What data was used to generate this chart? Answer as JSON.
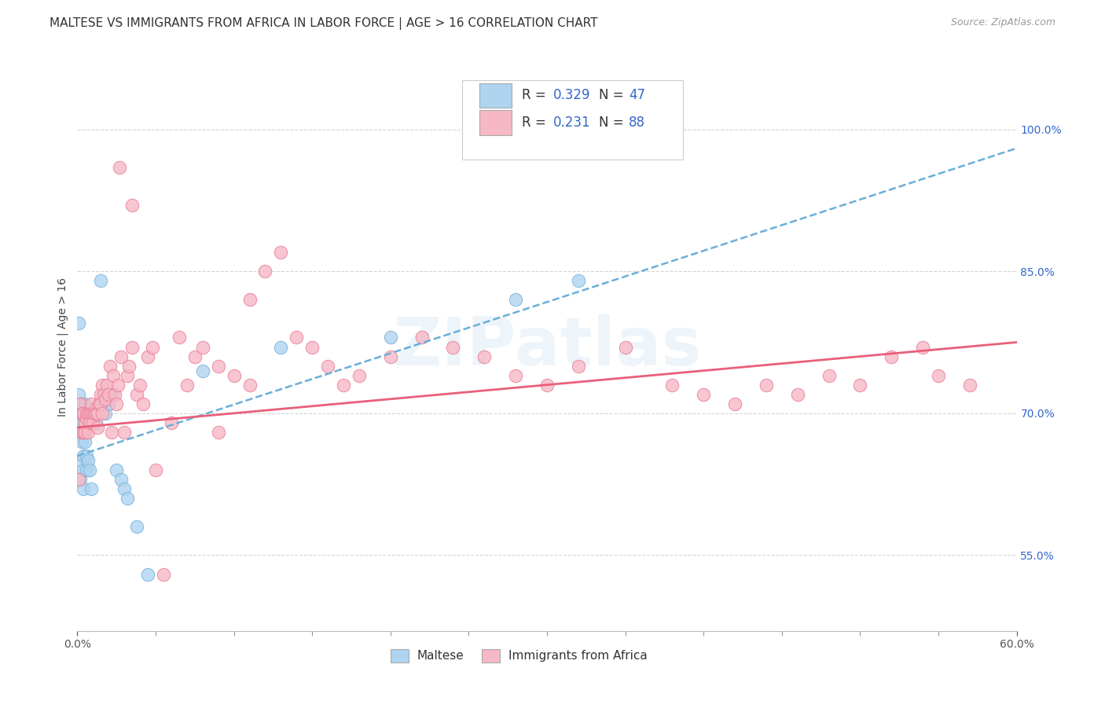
{
  "title": "MALTESE VS IMMIGRANTS FROM AFRICA IN LABOR FORCE | AGE > 16 CORRELATION CHART",
  "source": "Source: ZipAtlas.com",
  "ylabel": "In Labor Force | Age > 16",
  "xlim": [
    0.0,
    0.6
  ],
  "ylim": [
    0.47,
    1.07
  ],
  "xtick_positions": [
    0.0,
    0.6
  ],
  "xticklabels": [
    "0.0%",
    "60.0%"
  ],
  "yticks_right": [
    0.55,
    0.7,
    0.85,
    1.0
  ],
  "yticklabels_right": [
    "55.0%",
    "70.0%",
    "85.0%",
    "100.0%"
  ],
  "grid_color": "#d0d0d0",
  "bg_color": "#ffffff",
  "series1_name": "Maltese",
  "series1_R": "0.329",
  "series1_N": "47",
  "series1_color": "#aed4f0",
  "series1_edge": "#7ab3d9",
  "series1_trend_color": "#6aafd8",
  "series2_name": "Immigrants from Africa",
  "series2_R": "0.231",
  "series2_N": "88",
  "series2_color": "#f7b8c5",
  "series2_edge": "#e8809a",
  "series2_trend_color": "#e8607a",
  "legend_text_color": "#3366cc",
  "watermark": "ZIPatlas",
  "series1_x": [
    0.001,
    0.001,
    0.001,
    0.002,
    0.002,
    0.002,
    0.002,
    0.002,
    0.003,
    0.003,
    0.003,
    0.003,
    0.003,
    0.004,
    0.004,
    0.004,
    0.004,
    0.005,
    0.005,
    0.005,
    0.005,
    0.005,
    0.006,
    0.006,
    0.006,
    0.007,
    0.007,
    0.008,
    0.009,
    0.01,
    0.012,
    0.015,
    0.016,
    0.018,
    0.02,
    0.022,
    0.025,
    0.028,
    0.03,
    0.032,
    0.038,
    0.045,
    0.08,
    0.13,
    0.2,
    0.28,
    0.32
  ],
  "series1_y": [
    0.795,
    0.72,
    0.68,
    0.71,
    0.7,
    0.69,
    0.65,
    0.63,
    0.71,
    0.7,
    0.68,
    0.69,
    0.67,
    0.7,
    0.655,
    0.64,
    0.62,
    0.71,
    0.7,
    0.68,
    0.69,
    0.67,
    0.7,
    0.655,
    0.64,
    0.7,
    0.65,
    0.64,
    0.62,
    0.7,
    0.69,
    0.84,
    0.71,
    0.7,
    0.71,
    0.72,
    0.64,
    0.63,
    0.62,
    0.61,
    0.58,
    0.53,
    0.745,
    0.77,
    0.78,
    0.82,
    0.84
  ],
  "series2_x": [
    0.001,
    0.002,
    0.003,
    0.003,
    0.004,
    0.004,
    0.005,
    0.005,
    0.006,
    0.006,
    0.007,
    0.007,
    0.008,
    0.008,
    0.009,
    0.009,
    0.01,
    0.01,
    0.011,
    0.012,
    0.012,
    0.013,
    0.013,
    0.014,
    0.015,
    0.015,
    0.016,
    0.016,
    0.017,
    0.018,
    0.019,
    0.02,
    0.021,
    0.022,
    0.023,
    0.024,
    0.025,
    0.026,
    0.028,
    0.03,
    0.032,
    0.033,
    0.035,
    0.038,
    0.04,
    0.042,
    0.045,
    0.048,
    0.05,
    0.055,
    0.06,
    0.065,
    0.07,
    0.075,
    0.08,
    0.09,
    0.1,
    0.11,
    0.12,
    0.13,
    0.14,
    0.15,
    0.16,
    0.17,
    0.18,
    0.2,
    0.22,
    0.24,
    0.26,
    0.28,
    0.3,
    0.32,
    0.35,
    0.38,
    0.4,
    0.42,
    0.44,
    0.46,
    0.48,
    0.5,
    0.52,
    0.54,
    0.55,
    0.57,
    0.035,
    0.027,
    0.09,
    0.11
  ],
  "series2_y": [
    0.63,
    0.71,
    0.7,
    0.68,
    0.7,
    0.68,
    0.69,
    0.68,
    0.695,
    0.7,
    0.7,
    0.68,
    0.7,
    0.69,
    0.7,
    0.71,
    0.7,
    0.69,
    0.7,
    0.705,
    0.7,
    0.7,
    0.685,
    0.71,
    0.72,
    0.71,
    0.7,
    0.73,
    0.72,
    0.715,
    0.73,
    0.72,
    0.75,
    0.68,
    0.74,
    0.72,
    0.71,
    0.73,
    0.76,
    0.68,
    0.74,
    0.75,
    0.77,
    0.72,
    0.73,
    0.71,
    0.76,
    0.77,
    0.64,
    0.53,
    0.69,
    0.78,
    0.73,
    0.76,
    0.77,
    0.75,
    0.74,
    0.82,
    0.85,
    0.87,
    0.78,
    0.77,
    0.75,
    0.73,
    0.74,
    0.76,
    0.78,
    0.77,
    0.76,
    0.74,
    0.73,
    0.75,
    0.77,
    0.73,
    0.72,
    0.71,
    0.73,
    0.72,
    0.74,
    0.73,
    0.76,
    0.77,
    0.74,
    0.73,
    0.92,
    0.96,
    0.68,
    0.73
  ]
}
